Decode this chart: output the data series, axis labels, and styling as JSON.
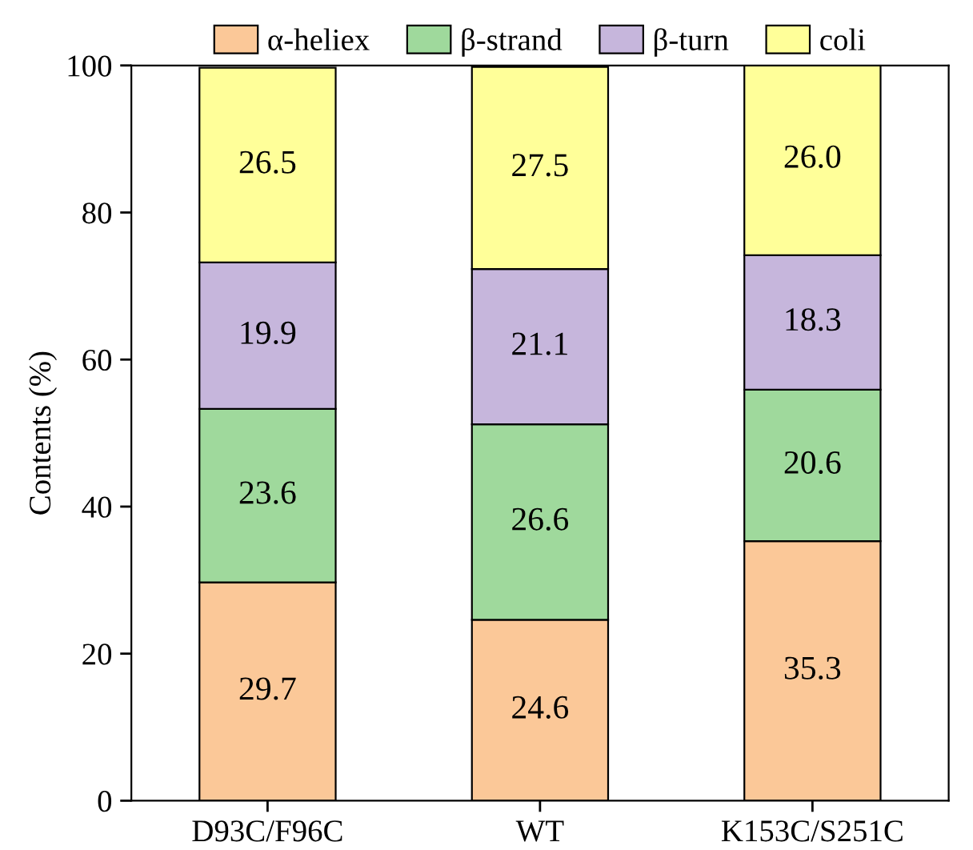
{
  "chart_data": {
    "type": "bar",
    "stacked": true,
    "ylabel": "Contents (%)",
    "categories": [
      "D93C/F96C",
      "WT",
      "K153C/S251C"
    ],
    "series": [
      {
        "name": "α-heliex",
        "color": "#fbc898",
        "values": [
          29.7,
          24.6,
          35.3
        ],
        "value_labels": [
          "29.7",
          "24.6",
          "35.3"
        ]
      },
      {
        "name": "β-strand",
        "color": "#9fd99c",
        "values": [
          23.6,
          26.6,
          20.6
        ],
        "value_labels": [
          "23.6",
          "26.6",
          "20.6"
        ]
      },
      {
        "name": "β-turn",
        "color": "#c6b6dc",
        "values": [
          19.9,
          21.1,
          18.3
        ],
        "value_labels": [
          "19.9",
          "21.1",
          "18.3"
        ]
      },
      {
        "name": "coli",
        "color": "#ffff99",
        "values": [
          26.5,
          27.5,
          26.0
        ],
        "value_labels": [
          "26.5",
          "27.5",
          "26.0"
        ]
      }
    ],
    "ylim": [
      0,
      100
    ],
    "yticks": [
      0,
      20,
      40,
      60,
      80,
      100
    ],
    "legend": "top",
    "grid": false
  }
}
